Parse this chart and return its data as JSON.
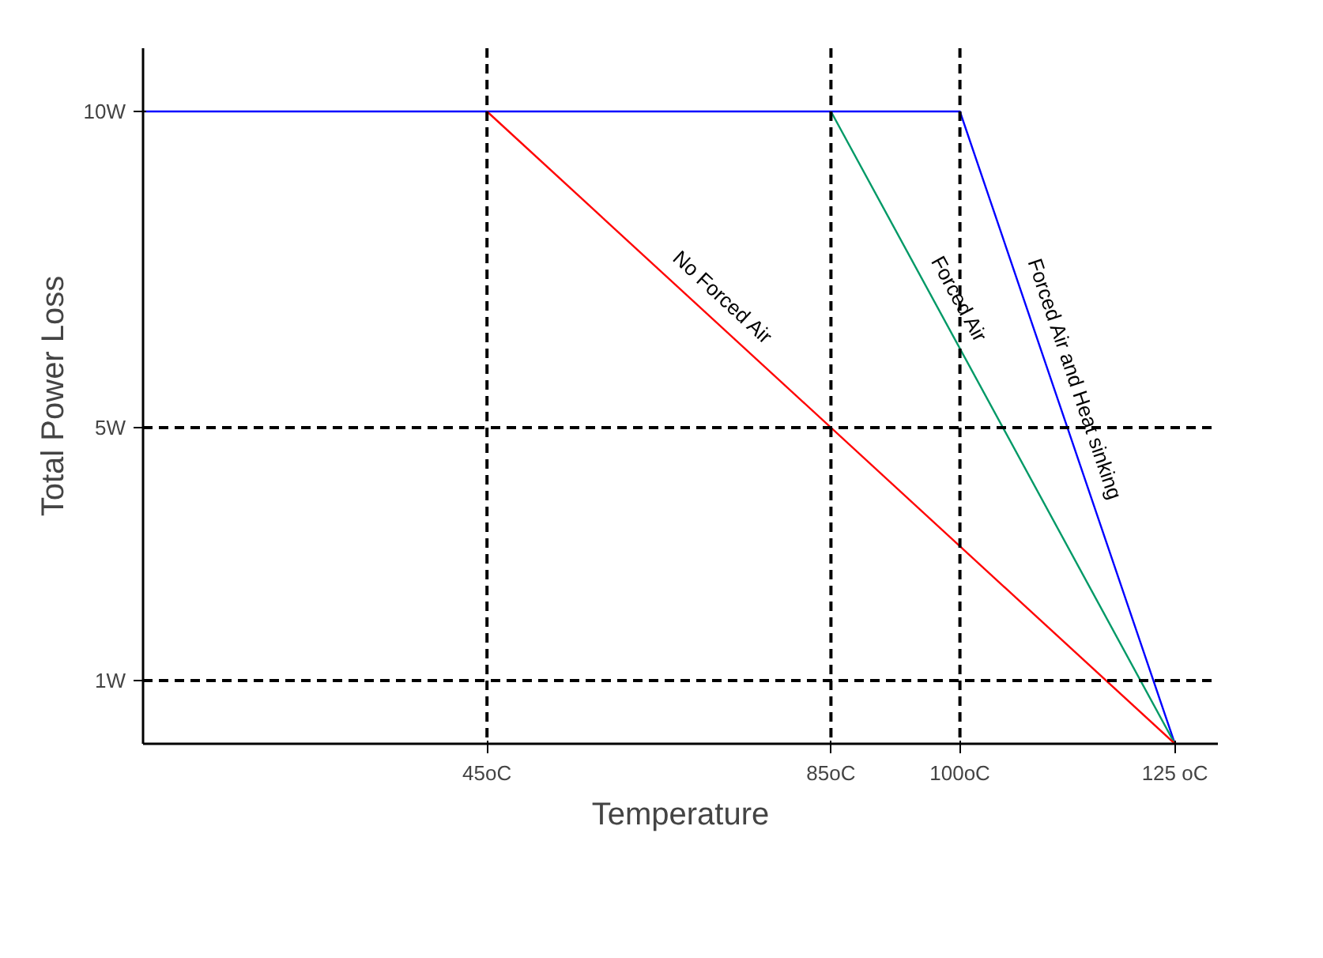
{
  "chart_data": {
    "type": "line",
    "xlabel": "Temperature",
    "ylabel": "Total Power Loss",
    "xlim": [
      5,
      130
    ],
    "ylim": [
      0,
      11
    ],
    "xticks": [
      {
        "value": 45,
        "label": "45oC"
      },
      {
        "value": 85,
        "label": "85oC"
      },
      {
        "value": 100,
        "label": "100oC"
      },
      {
        "value": 125,
        "label": "125 oC"
      }
    ],
    "yticks": [
      {
        "value": 1,
        "label": "1W"
      },
      {
        "value": 5,
        "label": "5W"
      },
      {
        "value": 10,
        "label": "10W"
      }
    ],
    "series": [
      {
        "name": "Forced Air and Heat sinking",
        "color": "#0000ff",
        "x": [
          5,
          100,
          125
        ],
        "values": [
          10,
          10,
          0
        ]
      },
      {
        "name": "Forced Air",
        "color": "#009966",
        "x": [
          85,
          125
        ],
        "values": [
          10,
          0
        ]
      },
      {
        "name": "No Forced Air",
        "color": "#ff0000",
        "x": [
          45,
          125
        ],
        "values": [
          10,
          0
        ]
      }
    ],
    "ref_lines": [
      {
        "axis": "x",
        "value": 45,
        "color": "#000000",
        "line_style": "dashed"
      },
      {
        "axis": "x",
        "value": 85,
        "color": "#000000",
        "line_style": "dashed"
      },
      {
        "axis": "x",
        "value": 100,
        "color": "#000000",
        "line_style": "dashed"
      },
      {
        "axis": "y",
        "value": 5,
        "color": "#000000",
        "line_style": "dashed"
      },
      {
        "axis": "y",
        "value": 1,
        "color": "#000000",
        "line_style": "dashed"
      }
    ],
    "grid": false,
    "marker": "none",
    "line_style": "solid"
  }
}
